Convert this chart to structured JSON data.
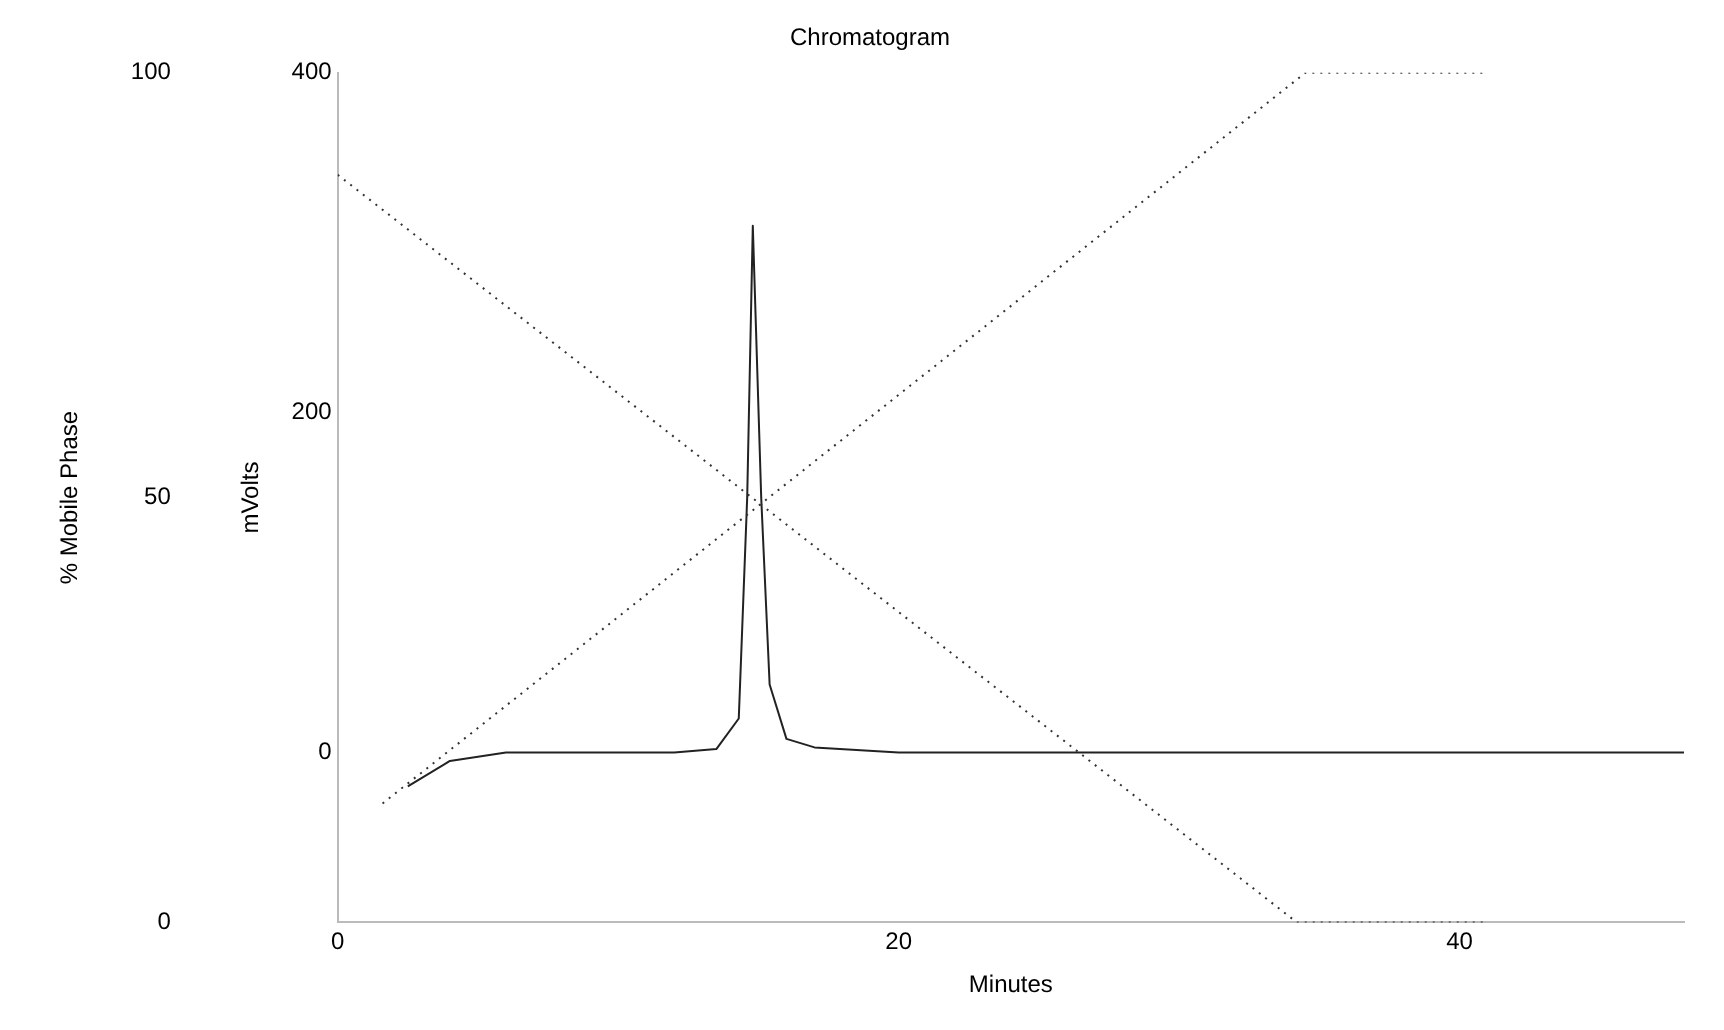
{
  "chart_data": {
    "type": "line",
    "title": "Chromatogram",
    "xlabel": "Minutes",
    "ylabel": "% Mobile Phase",
    "y2label": "mVolts",
    "xlim": [
      0,
      48
    ],
    "xticks": [
      0,
      20,
      40
    ],
    "ylim": [
      0,
      100
    ],
    "yticks": [
      0,
      50,
      100
    ],
    "y2lim": [
      -100,
      400
    ],
    "y2ticks": [
      0,
      200,
      400
    ],
    "grid": false,
    "legend": false,
    "marker": "none",
    "line_style": "dotted",
    "series": [
      {
        "color": "#333333",
        "x": [
          0,
          34.2,
          41
        ],
        "values": [
          88,
          0,
          0
        ]
      },
      {
        "color": "#333333",
        "x": [
          1.6,
          34.5,
          41
        ],
        "values": [
          14,
          100,
          100
        ]
      },
      {
        "color": "#222222",
        "axis": "y2",
        "line_style": "solid",
        "x": [
          2.5,
          4,
          6,
          12,
          13.5,
          14.3,
          14.6,
          14.8,
          15.1,
          15.4,
          16,
          17,
          20,
          25,
          30,
          35,
          40,
          45,
          48
        ],
        "values": [
          -20,
          -5,
          0,
          0,
          2,
          20,
          150,
          310,
          150,
          40,
          8,
          3,
          0,
          0,
          0,
          0,
          0,
          0,
          0
        ]
      }
    ]
  }
}
